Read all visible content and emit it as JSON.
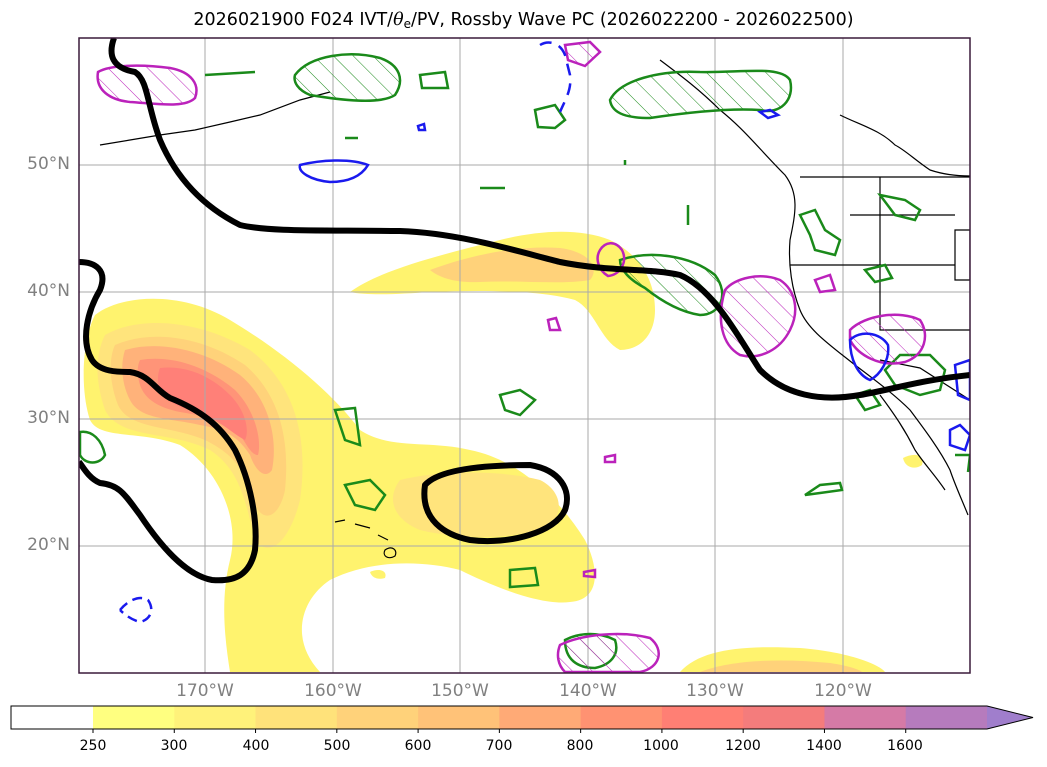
{
  "title": {
    "prefix": "2026021900 F024 IVT/",
    "theta": "θ",
    "theta_sub": "e",
    "suffix": "/PV, Rossby Wave PC (2026022200 - 2026022500)"
  },
  "axes": {
    "lat_labels": [
      "50°N",
      "40°N",
      "30°N",
      "20°N"
    ],
    "lon_labels": [
      "170°W",
      "160°W",
      "150°W",
      "140°W",
      "130°W",
      "120°W"
    ]
  },
  "colorbar": {
    "levels": [
      "250",
      "300",
      "400",
      "500",
      "600",
      "700",
      "800",
      "1000",
      "1200",
      "1400",
      "1600"
    ],
    "colors": [
      "#ffff80",
      "#fff27a",
      "#ffe27a",
      "#ffd27a",
      "#ffc278",
      "#ffaa76",
      "#ff9272",
      "#ff7f74",
      "#f47c7c",
      "#d57aa6",
      "#b67bbd",
      "#a07ecc"
    ],
    "extend": "max"
  },
  "legend_colors": {
    "ivt_low": "#fff36e",
    "ivt_mid": "#ffd67f",
    "ivt_high": "#ff8f7a",
    "rossby_wave_line": "#000000",
    "theta_e_contour": "#1a8a1a",
    "pv_contour": "#bb22bb",
    "negative_contour": "#1a1aee"
  }
}
